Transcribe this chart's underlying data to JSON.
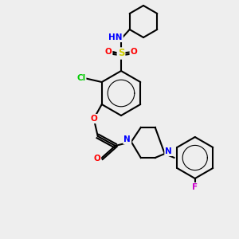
{
  "bg_color": "#eeeeee",
  "bond_color": "#000000",
  "bond_width": 1.5,
  "atom_colors": {
    "N": "#0000ff",
    "O": "#ff0000",
    "S": "#cccc00",
    "Cl": "#00cc00",
    "F": "#cc00cc",
    "H": "#888888",
    "C": "#000000"
  },
  "font_size": 7.5
}
